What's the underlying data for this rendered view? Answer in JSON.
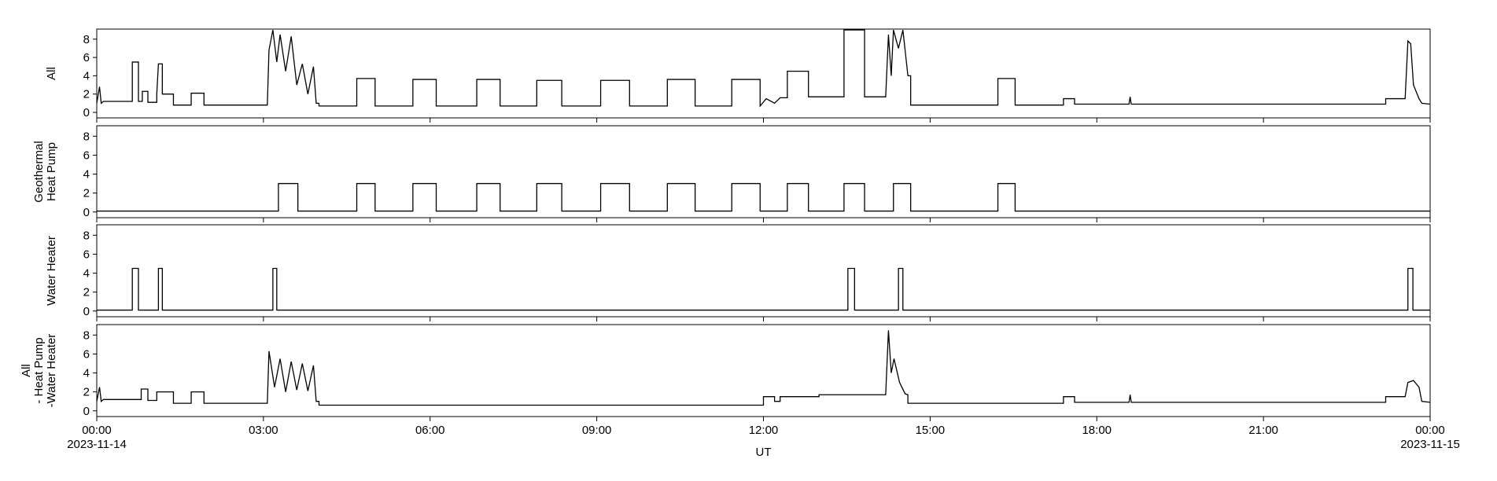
{
  "chart_data": [
    {
      "type": "line",
      "ylabel": [
        "All"
      ],
      "color": "#000000",
      "xlim": [
        0,
        24
      ],
      "xticks": [
        0,
        3,
        6,
        9,
        12,
        15,
        18,
        21,
        24
      ],
      "ylim": [
        -0.6,
        9.1
      ],
      "yticks": [
        0,
        2,
        4,
        6,
        8
      ],
      "x": [
        0,
        0.05,
        0.08,
        0.12,
        0.64,
        0.64,
        0.75,
        0.75,
        0.82,
        0.82,
        0.92,
        0.92,
        1.08,
        1.08,
        1.11,
        1.18,
        1.18,
        1.38,
        1.38,
        1.7,
        1.7,
        1.93,
        1.93,
        3.07,
        3.1,
        3.17,
        3.24,
        3.3,
        3.4,
        3.5,
        3.6,
        3.7,
        3.8,
        3.9,
        3.95,
        4.0,
        4.0,
        4.68,
        4.68,
        5.01,
        5.01,
        5.69,
        5.69,
        6.11,
        6.11,
        6.84,
        6.84,
        7.26,
        7.26,
        7.92,
        7.92,
        8.37,
        8.37,
        9.07,
        9.07,
        9.59,
        9.59,
        10.27,
        10.27,
        10.77,
        10.77,
        11.43,
        11.43,
        11.94,
        11.94,
        12.05,
        12.2,
        12.3,
        12.43,
        12.43,
        12.81,
        12.81,
        13.45,
        13.45,
        13.82,
        13.82,
        14.2,
        14.25,
        14.3,
        14.34,
        14.43,
        14.51,
        14.6,
        14.65,
        14.65,
        16.22,
        16.22,
        16.53,
        16.53,
        17.4,
        17.4,
        17.6,
        17.6,
        18.58,
        18.6,
        18.62,
        23.2,
        23.2,
        23.55,
        23.6,
        23.65,
        23.7,
        23.8,
        23.85,
        24
      ],
      "values": [
        1.0,
        2.8,
        1.0,
        1.2,
        1.2,
        5.5,
        5.5,
        1.2,
        1.2,
        2.3,
        2.3,
        1.1,
        1.1,
        2.0,
        5.3,
        5.3,
        2.0,
        2.0,
        0.8,
        0.8,
        2.1,
        2.1,
        0.8,
        0.8,
        6.8,
        9.0,
        5.5,
        8.5,
        4.5,
        8.3,
        3.0,
        5.3,
        2.0,
        5.0,
        1.0,
        1.0,
        0.7,
        0.7,
        3.7,
        3.7,
        0.7,
        0.7,
        3.6,
        3.6,
        0.7,
        0.7,
        3.6,
        3.6,
        0.7,
        0.7,
        3.5,
        3.5,
        0.7,
        0.7,
        3.5,
        3.5,
        0.7,
        0.7,
        3.6,
        3.6,
        0.7,
        0.7,
        3.6,
        3.6,
        0.7,
        1.5,
        1.0,
        1.6,
        1.6,
        4.5,
        4.5,
        1.7,
        1.7,
        9.0,
        9.0,
        1.7,
        1.7,
        8.5,
        4.0,
        9.0,
        7.0,
        9.0,
        4.0,
        4.0,
        0.8,
        0.8,
        3.7,
        3.7,
        0.8,
        0.8,
        1.5,
        1.5,
        0.9,
        0.9,
        1.7,
        0.9,
        0.9,
        1.5,
        1.5,
        7.8,
        7.5,
        3.0,
        1.5,
        1.0,
        0.9
      ]
    },
    {
      "type": "line",
      "ylabel": [
        "Geothermal",
        "Heat Pump"
      ],
      "color": "#000000",
      "xlim": [
        0,
        24
      ],
      "xticks": [
        0,
        3,
        6,
        9,
        12,
        15,
        18,
        21,
        24
      ],
      "ylim": [
        -0.6,
        9.1
      ],
      "yticks": [
        0,
        2,
        4,
        6,
        8
      ],
      "x": [
        0,
        3.27,
        3.27,
        3.62,
        3.62,
        4.68,
        4.68,
        5.01,
        5.01,
        5.69,
        5.69,
        6.11,
        6.11,
        6.84,
        6.84,
        7.26,
        7.26,
        7.92,
        7.92,
        8.37,
        8.37,
        9.07,
        9.07,
        9.59,
        9.59,
        10.27,
        10.27,
        10.77,
        10.77,
        11.43,
        11.43,
        11.94,
        11.94,
        12.43,
        12.43,
        12.81,
        12.81,
        13.45,
        13.45,
        13.82,
        13.82,
        14.34,
        14.34,
        14.65,
        14.65,
        16.22,
        16.22,
        16.53,
        16.53,
        24
      ],
      "values": [
        0.1,
        0.1,
        3,
        3,
        0.1,
        0.1,
        3,
        3,
        0.1,
        0.1,
        3,
        3,
        0.1,
        0.1,
        3,
        3,
        0.1,
        0.1,
        3,
        3,
        0.1,
        0.1,
        3,
        3,
        0.1,
        0.1,
        3,
        3,
        0.1,
        0.1,
        3,
        3,
        0.1,
        0.1,
        3,
        3,
        0.1,
        0.1,
        3,
        3,
        0.1,
        0.1,
        3,
        3,
        0.1,
        0.1,
        3,
        3,
        0.1,
        0.1
      ]
    },
    {
      "type": "line",
      "ylabel": [
        "Water Heater"
      ],
      "color": "#000000",
      "xlim": [
        0,
        24
      ],
      "xticks": [
        0,
        3,
        6,
        9,
        12,
        15,
        18,
        21,
        24
      ],
      "ylim": [
        -0.6,
        9.1
      ],
      "yticks": [
        0,
        2,
        4,
        6,
        8
      ],
      "x": [
        0,
        0.64,
        0.64,
        0.75,
        0.75,
        1.11,
        1.11,
        1.18,
        1.18,
        3.17,
        3.17,
        3.24,
        3.24,
        13.52,
        13.52,
        13.64,
        13.64,
        14.43,
        14.43,
        14.51,
        14.51,
        23.6,
        23.6,
        23.69,
        23.69,
        24
      ],
      "values": [
        0.1,
        0.1,
        4.5,
        4.5,
        0.1,
        0.1,
        4.5,
        4.5,
        0.1,
        0.1,
        4.5,
        4.5,
        0.1,
        0.1,
        4.5,
        4.5,
        0.1,
        0.1,
        4.5,
        4.5,
        0.1,
        0.1,
        4.5,
        4.5,
        0.1,
        0.1
      ]
    },
    {
      "type": "line",
      "ylabel": [
        "All",
        "- Heat Pump",
        "-Water Heater"
      ],
      "color": "#000000",
      "xlabel": "UT",
      "xlim": [
        0,
        24
      ],
      "xticks": [
        {
          "value": 0,
          "label": "00:00"
        },
        {
          "value": 3,
          "label": "03:00"
        },
        {
          "value": 6,
          "label": "06:00"
        },
        {
          "value": 9,
          "label": "09:00"
        },
        {
          "value": 12,
          "label": "12:00"
        },
        {
          "value": 15,
          "label": "15:00"
        },
        {
          "value": 18,
          "label": "18:00"
        },
        {
          "value": 21,
          "label": "21:00"
        },
        {
          "value": 24,
          "label": "00:00"
        }
      ],
      "xtick_dates": [
        {
          "value": 0,
          "label": "2023-11-14"
        },
        {
          "value": 24,
          "label": "2023-11-15"
        }
      ],
      "ylim": [
        -0.6,
        9.1
      ],
      "yticks": [
        0,
        2,
        4,
        6,
        8
      ],
      "x": [
        0,
        0.05,
        0.08,
        0.12,
        0.8,
        0.8,
        0.92,
        0.92,
        1.08,
        1.08,
        1.38,
        1.38,
        1.7,
        1.7,
        1.93,
        1.93,
        3.07,
        3.1,
        3.2,
        3.3,
        3.4,
        3.5,
        3.6,
        3.7,
        3.8,
        3.9,
        3.95,
        4.0,
        4.0,
        12.0,
        12.0,
        12.2,
        12.2,
        12.3,
        12.3,
        13.0,
        13.0,
        14.2,
        14.25,
        14.3,
        14.35,
        14.45,
        14.55,
        14.6,
        14.6,
        17.4,
        17.4,
        17.6,
        17.6,
        18.58,
        18.6,
        18.62,
        23.2,
        23.2,
        23.55,
        23.6,
        23.7,
        23.8,
        23.85,
        24
      ],
      "values": [
        1.0,
        2.5,
        1.0,
        1.2,
        1.2,
        2.3,
        2.3,
        1.1,
        1.1,
        2.0,
        2.0,
        0.8,
        0.8,
        2.0,
        2.0,
        0.8,
        0.8,
        6.3,
        2.5,
        5.5,
        2.0,
        5.2,
        2.2,
        5.0,
        2.1,
        4.8,
        1.0,
        1.0,
        0.6,
        0.6,
        1.5,
        1.5,
        1.0,
        1.0,
        1.5,
        1.5,
        1.7,
        1.7,
        8.5,
        4.0,
        5.5,
        3.0,
        1.8,
        1.7,
        0.8,
        0.8,
        1.5,
        1.5,
        0.9,
        0.9,
        1.7,
        0.9,
        0.9,
        1.5,
        1.5,
        3.0,
        3.2,
        2.5,
        1.0,
        0.9
      ]
    }
  ]
}
